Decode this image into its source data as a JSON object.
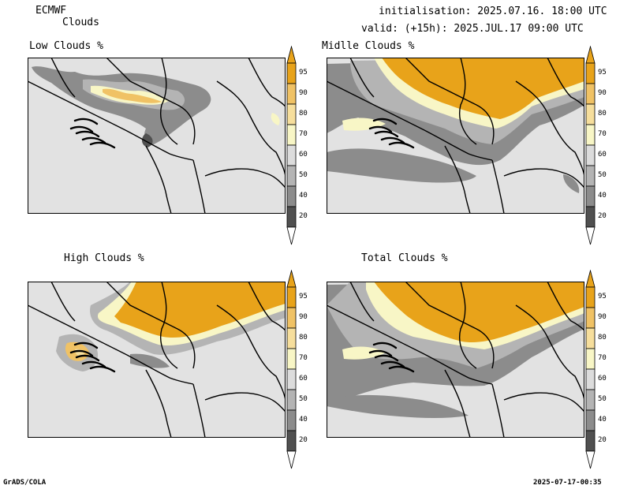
{
  "header": {
    "model": "ECMWF",
    "product": "Clouds",
    "init": "initialisation: 2025.07.16. 18:00 UTC",
    "valid": "valid: (+15h): 2025.JUL.17 09:00 UTC"
  },
  "footer": {
    "left": "GrADS/COLA",
    "right": "2025-07-17-00:35"
  },
  "panels": [
    {
      "title": "Low Clouds %",
      "coverage": "low"
    },
    {
      "title": "Midlle Clouds %",
      "coverage": "middle"
    },
    {
      "title": "High Clouds %",
      "coverage": "high"
    },
    {
      "title": "Total Clouds %",
      "coverage": "total"
    }
  ],
  "colorbar": {
    "levels": [
      "95",
      "90",
      "80",
      "70",
      "60",
      "50",
      "40",
      "20"
    ],
    "colors": [
      "#e8a31a",
      "#f0c265",
      "#f6de9c",
      "#f8f6c6",
      "#dcdcdc",
      "#b4b4b4",
      "#8c8c8c",
      "#505050"
    ]
  },
  "colors": {
    "background": "#e2e2e2",
    "border_lines": "#000000"
  }
}
